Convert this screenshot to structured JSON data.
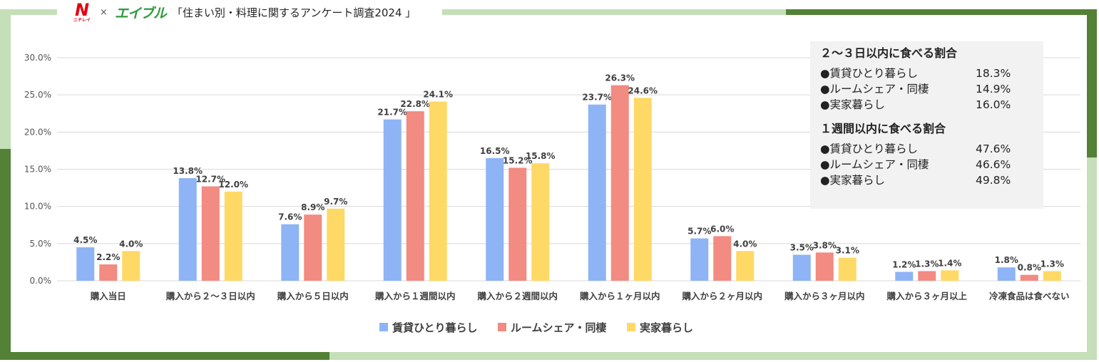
{
  "header": {
    "logo_left": "N",
    "logo_left_sub": "ニチレイ",
    "cross": "×",
    "logo_right": "エイブル",
    "title": "「住まい別・料理に関するアンケート調査2024 」"
  },
  "colors": {
    "series_1": "#8eb4f5",
    "series_2": "#f28b82",
    "series_3": "#ffd966",
    "frame_dark": "#538135",
    "frame_light": "#c5dfb8",
    "grid": "#d9d9d9",
    "infobox_bg": "#f2f2f2"
  },
  "chart_data": {
    "type": "bar",
    "title": "",
    "xlabel": "",
    "ylabel": "",
    "ylim": [
      0,
      30
    ],
    "yticks": [
      "0.0%",
      "5.0%",
      "10.0%",
      "15.0%",
      "20.0%",
      "25.0%",
      "30.0%"
    ],
    "categories": [
      "購入当日",
      "購入から２～３日以内",
      "購入から５日以内",
      "購入から１週間以内",
      "購入から２週間以内",
      "購入から１ヶ月以内",
      "購入から２ヶ月以内",
      "購入から３ヶ月以内",
      "購入から３ヶ月以上",
      "冷凍食品は食べない"
    ],
    "series": [
      {
        "name": "賃貸ひとり暮らし",
        "values": [
          4.5,
          13.8,
          7.6,
          21.7,
          16.5,
          23.7,
          5.7,
          3.5,
          1.2,
          1.8
        ],
        "labels": [
          "4.5%",
          "13.8%",
          "7.6%",
          "21.7%",
          "16.5%",
          "23.7%",
          "5.7%",
          "3.5%",
          "1.2%",
          "1.8%"
        ]
      },
      {
        "name": "ルームシェア・同棲",
        "values": [
          2.2,
          12.7,
          8.9,
          22.8,
          15.2,
          26.3,
          6.0,
          3.8,
          1.3,
          0.8
        ],
        "labels": [
          "2.2%",
          "12.7%",
          "8.9%",
          "22.8%",
          "15.2%",
          "26.3%",
          "6.0%",
          "3.8%",
          "1.3%",
          "0.8%"
        ]
      },
      {
        "name": "実家暮らし",
        "values": [
          4.0,
          12.0,
          9.7,
          24.1,
          15.8,
          24.6,
          4.0,
          3.1,
          1.4,
          1.3
        ],
        "labels": [
          "4.0%",
          "12.0%",
          "9.7%",
          "24.1%",
          "15.8%",
          "24.6%",
          "4.0%",
          "3.1%",
          "1.4%",
          "1.3%"
        ]
      }
    ],
    "legend_position": "bottom",
    "grid": true
  },
  "infobox": {
    "section1": {
      "title": "２～３日以内に食べる割合",
      "rows": [
        {
          "label": "●賃貸ひとり暮らし",
          "value": "18.3%"
        },
        {
          "label": "●ルームシェア・同棲",
          "value": "14.9%"
        },
        {
          "label": "●実家暮らし",
          "value": "16.0%"
        }
      ]
    },
    "section2": {
      "title": "１週間以内に食べる割合",
      "rows": [
        {
          "label": "●賃貸ひとり暮らし",
          "value": "47.6%"
        },
        {
          "label": "●ルームシェア・同棲",
          "value": "46.6%"
        },
        {
          "label": "●実家暮らし",
          "value": "49.8%"
        }
      ]
    }
  }
}
